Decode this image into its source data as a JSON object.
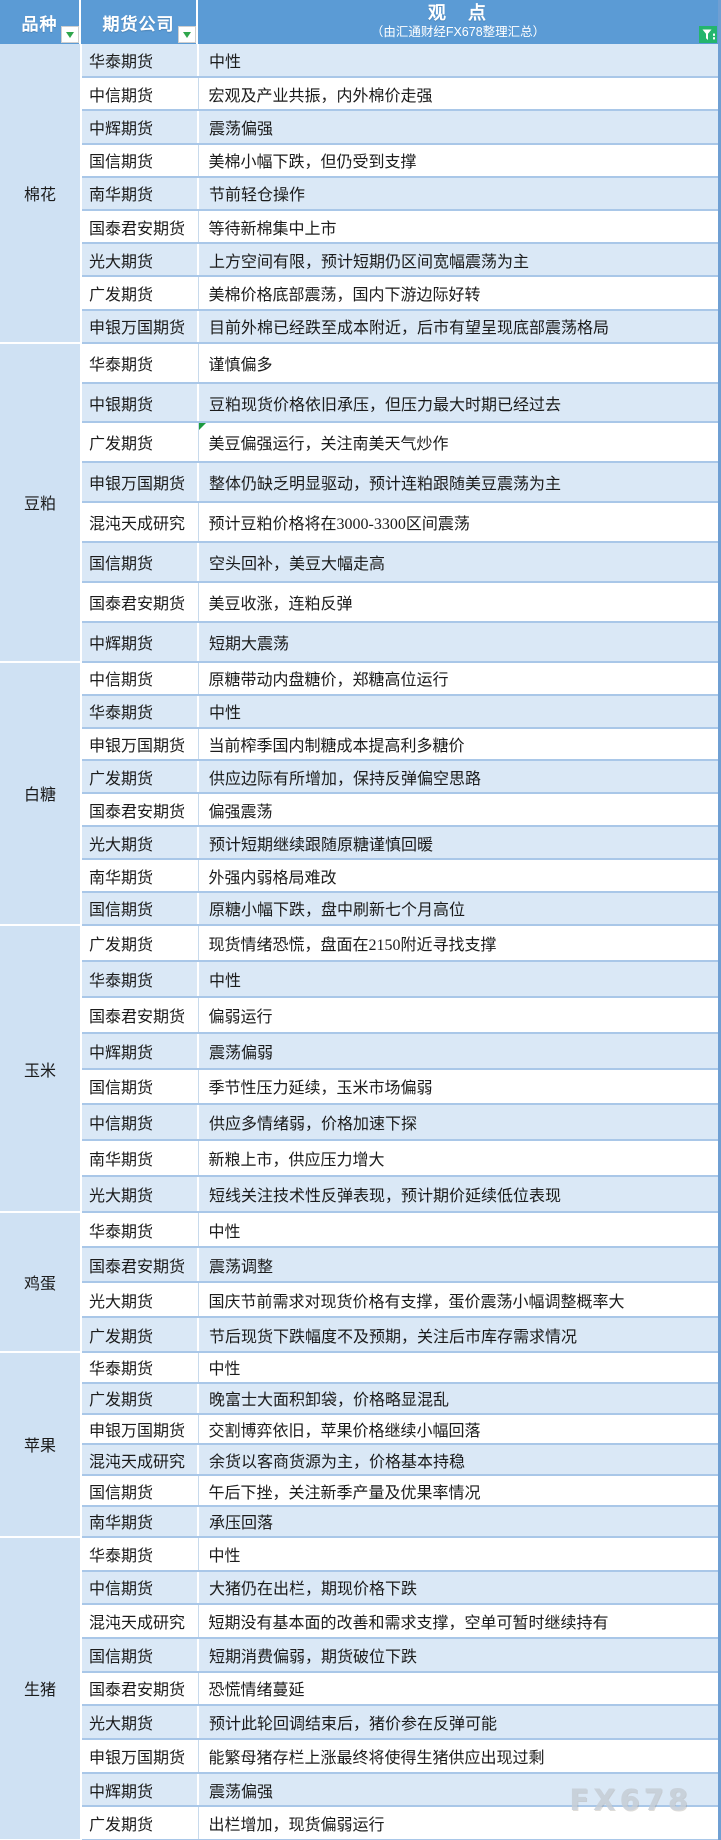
{
  "header": {
    "variety_label": "品种",
    "company_label": "期货公司",
    "opinion_label": "观　点",
    "opinion_subtitle": "（由汇通财经FX678整理汇总）"
  },
  "icons": {
    "variety_dropdown": "green-down-triangle",
    "company_dropdown": "green-down-triangle",
    "header_filter": "funnel-icon"
  },
  "colors": {
    "header_bg": "#5b9bd5",
    "stripe_blue": "#dae8f6",
    "variety_col_bg": "#cfe1f3",
    "grid_line": "#a9c7e8",
    "right_edge_line": "#6f9fd3",
    "dropdown_green": "#2fa64c",
    "filter_button_green": "#24b56d",
    "cell_marker_green": "#1c9a3f",
    "text": "#1b1b1b"
  },
  "watermark": "FX678",
  "sections": [
    {
      "variety": "棉花",
      "rows": [
        {
          "company": "华泰期货",
          "opinion": "中性"
        },
        {
          "company": "中信期货",
          "opinion": "宏观及产业共振，内外棉价走强"
        },
        {
          "company": "中辉期货",
          "opinion": "震荡偏强"
        },
        {
          "company": "国信期货",
          "opinion": "美棉小幅下跌，但仍受到支撑"
        },
        {
          "company": "南华期货",
          "opinion": "节前轻仓操作"
        },
        {
          "company": "国泰君安期货",
          "opinion": "等待新棉集中上市"
        },
        {
          "company": "光大期货",
          "opinion": "上方空间有限，预计短期仍区间宽幅震荡为主"
        },
        {
          "company": "广发期货",
          "opinion": "美棉价格底部震荡，国内下游边际好转"
        },
        {
          "company": "申银万国期货",
          "opinion": "目前外棉已经跌至成本附近，后市有望呈现底部震荡格局"
        }
      ]
    },
    {
      "variety": "豆粕",
      "rows": [
        {
          "company": "华泰期货",
          "opinion": "谨慎偏多"
        },
        {
          "company": "中银期货",
          "opinion": "豆粕现货价格依旧承压，但压力最大时期已经过去"
        },
        {
          "company": "广发期货",
          "opinion": "美豆偏强运行，关注南美天气炒作",
          "corner_marker": true
        },
        {
          "company": "申银万国期货",
          "opinion": "整体仍缺乏明显驱动，预计连粕跟随美豆震荡为主"
        },
        {
          "company": "混沌天成研究",
          "opinion": "预计豆粕价格将在3000-3300区间震荡"
        },
        {
          "company": "国信期货",
          "opinion": "空头回补，美豆大幅走高"
        },
        {
          "company": "国泰君安期货",
          "opinion": "美豆收涨，连粕反弹"
        },
        {
          "company": "中辉期货",
          "opinion": "短期大震荡"
        }
      ]
    },
    {
      "variety": "白糖",
      "rows": [
        {
          "company": "中信期货",
          "opinion": "原糖带动内盘糖价，郑糖高位运行"
        },
        {
          "company": "华泰期货",
          "opinion": "中性"
        },
        {
          "company": "申银万国期货",
          "opinion": "当前榨季国内制糖成本提高利多糖价"
        },
        {
          "company": "广发期货",
          "opinion": "供应边际有所增加，保持反弹偏空思路"
        },
        {
          "company": "国泰君安期货",
          "opinion": "偏强震荡"
        },
        {
          "company": "光大期货",
          "opinion": "预计短期继续跟随原糖谨慎回暖"
        },
        {
          "company": "南华期货",
          "opinion": "外强内弱格局难改"
        },
        {
          "company": "国信期货",
          "opinion": "原糖小幅下跌，盘中刷新七个月高位"
        }
      ]
    },
    {
      "variety": "玉米",
      "rows": [
        {
          "company": "广发期货",
          "opinion": "现货情绪恐慌，盘面在2150附近寻找支撑"
        },
        {
          "company": "华泰期货",
          "opinion": "中性"
        },
        {
          "company": "国泰君安期货",
          "opinion": "偏弱运行"
        },
        {
          "company": "中辉期货",
          "opinion": "震荡偏弱"
        },
        {
          "company": "国信期货",
          "opinion": "季节性压力延续，玉米市场偏弱"
        },
        {
          "company": "中信期货",
          "opinion": "供应多情绪弱，价格加速下探"
        },
        {
          "company": "南华期货",
          "opinion": "新粮上市，供应压力增大"
        },
        {
          "company": "光大期货",
          "opinion": "短线关注技术性反弹表现，预计期价延续低位表现"
        }
      ]
    },
    {
      "variety": "鸡蛋",
      "rows": [
        {
          "company": "华泰期货",
          "opinion": "中性"
        },
        {
          "company": "国泰君安期货",
          "opinion": "震荡调整"
        },
        {
          "company": "光大期货",
          "opinion": "国庆节前需求对现货价格有支撑，蛋价震荡小幅调整概率大"
        },
        {
          "company": "广发期货",
          "opinion": "节后现货下跌幅度不及预期，关注后市库存需求情况"
        }
      ]
    },
    {
      "variety": "苹果",
      "rows": [
        {
          "company": "华泰期货",
          "opinion": "中性"
        },
        {
          "company": "广发期货",
          "opinion": "晚富士大面积卸袋，价格略显混乱"
        },
        {
          "company": "申银万国期货",
          "opinion": "交割博弈依旧，苹果价格继续小幅回落"
        },
        {
          "company": "混沌天成研究",
          "opinion": "余货以客商货源为主，价格基本持稳"
        },
        {
          "company": "国信期货",
          "opinion": "午后下挫，关注新季产量及优果率情况"
        },
        {
          "company": "南华期货",
          "opinion": "承压回落"
        }
      ]
    },
    {
      "variety": "生猪",
      "rows": [
        {
          "company": "华泰期货",
          "opinion": "中性"
        },
        {
          "company": "中信期货",
          "opinion": "大猪仍在出栏，期现价格下跌"
        },
        {
          "company": "混沌天成研究",
          "opinion": "短期没有基本面的改善和需求支撑，空单可暂时继续持有"
        },
        {
          "company": "国信期货",
          "opinion": "短期消费偏弱，期货破位下跌"
        },
        {
          "company": "国泰君安期货",
          "opinion": "恐慌情绪蔓延"
        },
        {
          "company": "光大期货",
          "opinion": "预计此轮回调结束后，猪价参在反弹可能"
        },
        {
          "company": "申银万国期货",
          "opinion": "能繁母猪存栏上涨最终将使得生猪供应出现过剩"
        },
        {
          "company": "中辉期货",
          "opinion": "震荡偏强"
        },
        {
          "company": "广发期货",
          "opinion": "出栏增加，现货偏弱运行"
        }
      ]
    }
  ]
}
